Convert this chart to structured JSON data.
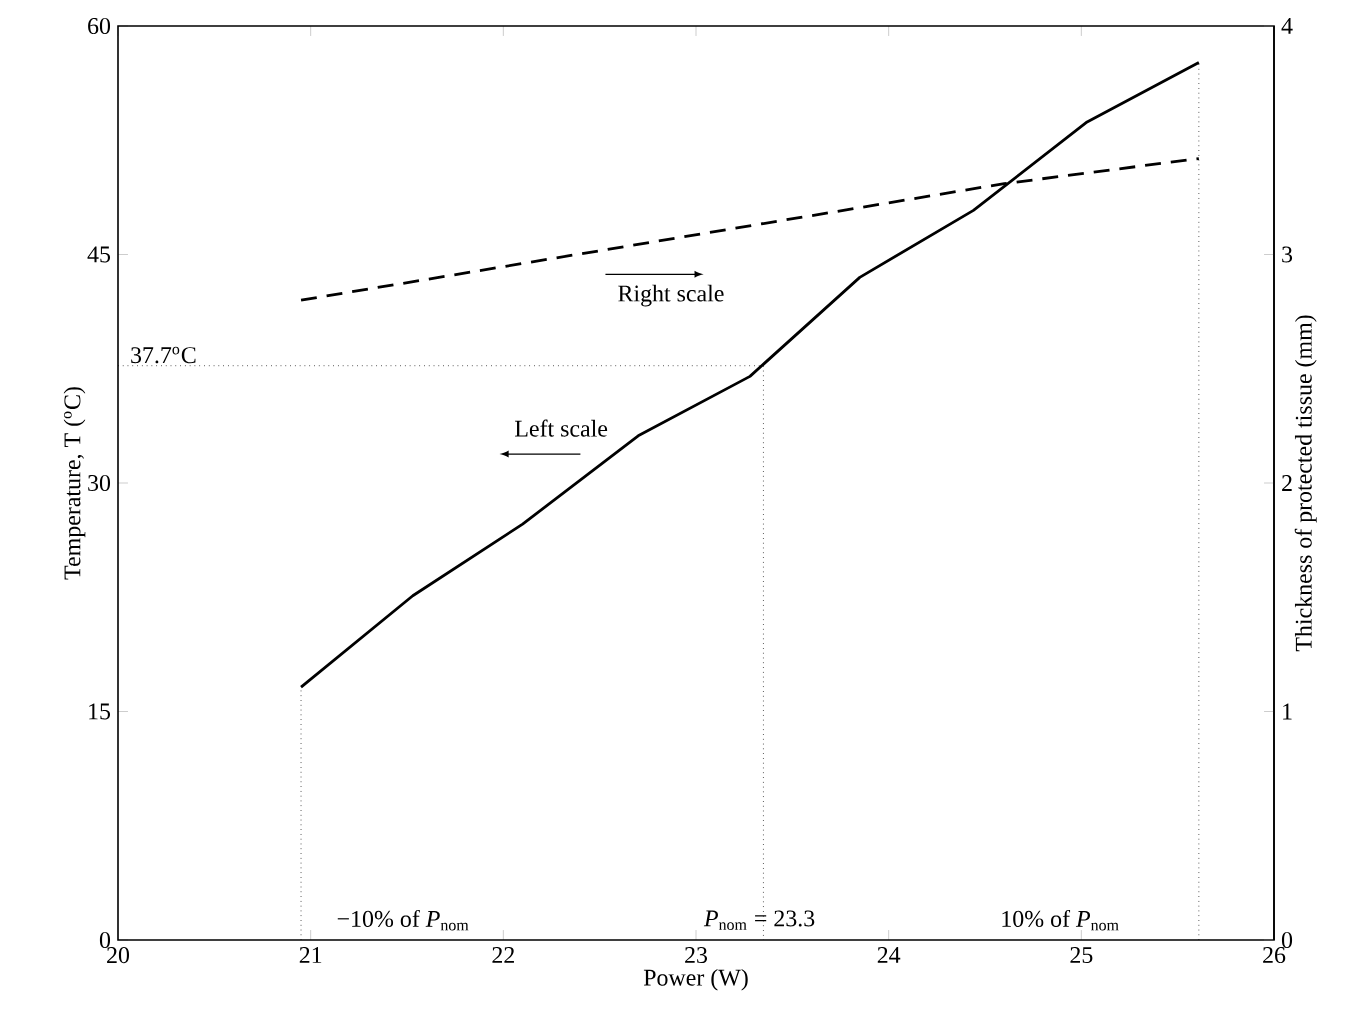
{
  "chart_data": {
    "type": "line",
    "xlabel": "Power (W)",
    "ylabel": "Temperature, T ($^{o}$C)",
    "y2label": "Thickness of protected tissue (mm)",
    "xlim": [
      20,
      26
    ],
    "xticks": [
      20,
      21,
      22,
      23,
      24,
      25,
      26
    ],
    "ylim": [
      0,
      60
    ],
    "yticks": [
      0,
      15,
      30,
      45,
      60
    ],
    "y2lim": [
      0,
      4
    ],
    "y2ticks": [
      0,
      1,
      2,
      3,
      4
    ],
    "grid": false,
    "marker": "none",
    "series": [
      {
        "color": "#000000",
        "line_style": "solid",
        "x": [
          20.95,
          21.53,
          22.1,
          22.7,
          23.28,
          23.85,
          24.44,
          25.03,
          25.61
        ],
        "values": [
          16.6,
          22.6,
          27.3,
          33.1,
          37.0,
          43.5,
          47.9,
          53.7,
          57.6
        ]
      },
      {
        "color": "#000000",
        "line_style": "dashed",
        "axis": "y2",
        "x": [
          20.95,
          24.6,
          25.61
        ],
        "values": [
          2.8,
          3.31,
          3.42
        ]
      },
      {
        "color": "#000000",
        "line_style": "dotted",
        "x": [
          20.95,
          20.95
        ],
        "values": [
          0,
          16.6
        ]
      },
      {
        "color": "#000000",
        "line_style": "dotted",
        "x": [
          20,
          23.35,
          23.35
        ],
        "values": [
          37.7,
          37.7,
          0
        ]
      },
      {
        "color": "#000000",
        "line_style": "dotted",
        "x": [
          25.61,
          25.61
        ],
        "values": [
          0,
          57.6
        ]
      }
    ],
    "annotations": [
      "37.7$^{o}$C",
      "Right scale",
      "Left scale",
      "−10% of *P*$_{nom}$",
      "*P*$_{nom}$ = 23.3",
      "10% of *P*$_{nom}$"
    ]
  }
}
